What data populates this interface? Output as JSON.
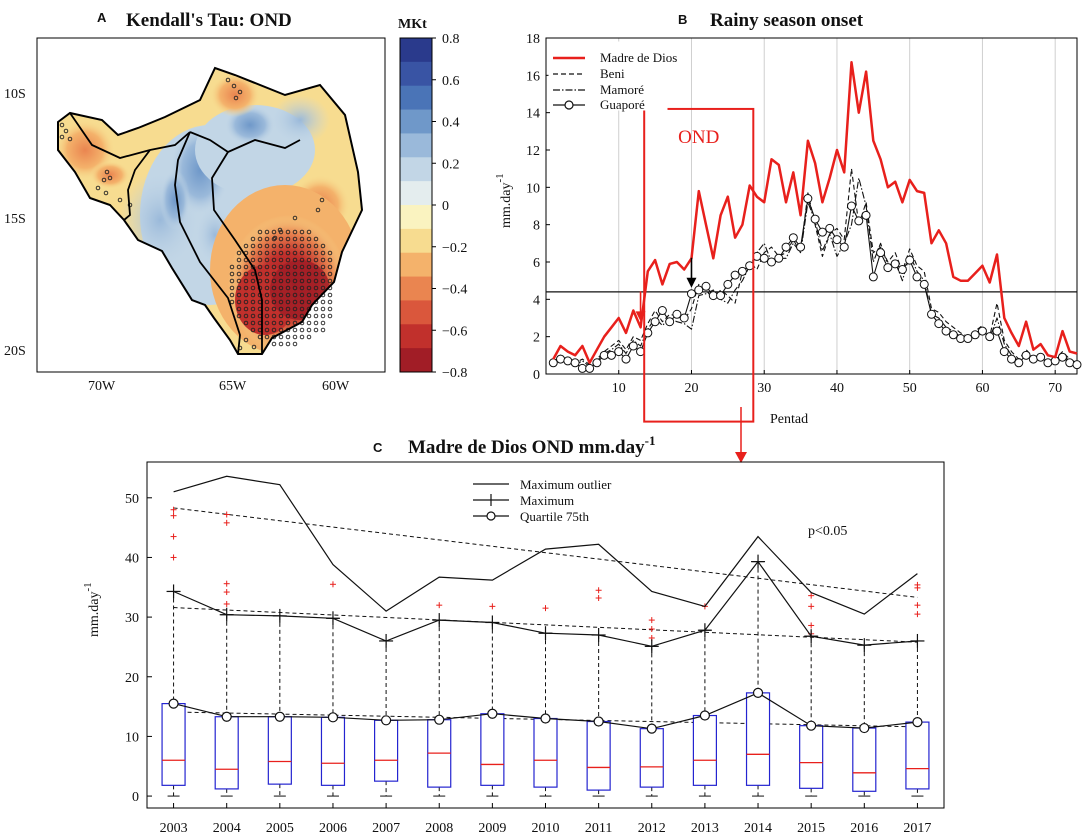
{
  "chart_data": [
    {
      "panel": "A",
      "type": "heatmap",
      "title": "Kendall's Tau: OND",
      "colorbar": {
        "label": "MKt",
        "range": [
          -0.8,
          0.8
        ],
        "ticks": [
          "0.8",
          "0.6",
          "0.4",
          "0.2",
          "0",
          "−0.2",
          "−0.4",
          "−0.6",
          "−0.8"
        ],
        "colors": [
          "#2a3a8c",
          "#3954a4",
          "#4a74b7",
          "#6f98c9",
          "#9ab9da",
          "#c2d6e6",
          "#e4edee",
          "#faf3c0",
          "#f7dc90",
          "#f4b26b",
          "#ea8550",
          "#da573c",
          "#c1302c",
          "#a11d26"
        ]
      },
      "x_ticks": [
        "70W",
        "65W",
        "60W"
      ],
      "y_ticks": [
        "10S",
        "15S",
        "20S"
      ]
    },
    {
      "panel": "B",
      "type": "line",
      "title": "Rainy season onset",
      "xlabel": "Pentad",
      "ylabel_main": "mm.day",
      "ylabel_sup": "-1",
      "xlim": [
        0,
        73
      ],
      "ylim": [
        0,
        18
      ],
      "x_ticks": [
        10,
        20,
        30,
        40,
        50,
        60,
        70
      ],
      "y_ticks": [
        0,
        2,
        4,
        6,
        8,
        10,
        12,
        14,
        16,
        18
      ],
      "threshold": 4.4,
      "ond_box": {
        "label": "OND",
        "x_range": [
          13.5,
          28.5
        ],
        "y_range": [
          -1.8,
          14.2
        ]
      },
      "arrows": [
        {
          "pentad": 13,
          "color": "#e8201c"
        },
        {
          "pentad": 20,
          "color": "#000000"
        }
      ],
      "legend": [
        "Madre de Dios",
        "Beni",
        "Mamoré",
        "Guaporé"
      ],
      "series": [
        {
          "name": "Madre de Dios",
          "color": "#e8201c",
          "values": [
            0.8,
            1.5,
            1.2,
            1.0,
            1.5,
            0.6,
            1.3,
            2.0,
            2.5,
            3.0,
            2.2,
            3.4,
            2.5,
            5.5,
            6.1,
            4.8,
            5.9,
            6.0,
            5.6,
            6.2,
            9.8,
            8.0,
            6.2,
            8.5,
            9.5,
            7.3,
            8.0,
            10.1,
            9.5,
            9.2,
            11.5,
            11.2,
            9.2,
            10.8,
            8.5,
            12.5,
            11.3,
            9.2,
            10.5,
            12.0,
            10.8,
            16.7,
            14.0,
            16.2,
            12.5,
            11.5,
            10.0,
            10.3,
            9.2,
            10.4,
            9.8,
            9.7,
            7.0,
            7.7,
            7.0,
            5.2,
            5.0,
            5.0,
            5.4,
            5.8,
            4.9,
            6.4,
            3.0,
            2.2,
            1.5,
            2.8,
            1.3,
            1.6,
            1.0,
            0.9,
            2.3,
            1.2,
            1.1
          ]
        },
        {
          "name": "Beni",
          "color": "#111111",
          "values": [
            0.6,
            1.0,
            0.8,
            0.6,
            0.8,
            0.5,
            0.8,
            1.2,
            1.5,
            1.8,
            1.3,
            2.0,
            1.8,
            2.7,
            3.4,
            2.8,
            3.2,
            3.1,
            2.9,
            3.5,
            4.8,
            4.5,
            4.0,
            4.5,
            4.2,
            3.8,
            5.5,
            6.0,
            5.6,
            6.5,
            6.8,
            6.3,
            6.5,
            7.2,
            6.5,
            9.7,
            8.0,
            6.3,
            7.5,
            7.8,
            7.2,
            11.0,
            8.0,
            9.2,
            6.5,
            6.8,
            6.0,
            6.5,
            5.5,
            6.7,
            5.8,
            5.5,
            3.5,
            3.3,
            2.8,
            2.5,
            2.2,
            2.0,
            2.3,
            2.6,
            2.0,
            3.8,
            1.8,
            1.2,
            0.8,
            1.3,
            0.9,
            1.0,
            0.7,
            0.8,
            1.2,
            0.8,
            0.6
          ]
        },
        {
          "name": "Mamoré",
          "color": "#111111",
          "values": [
            0.6,
            0.9,
            0.7,
            0.5,
            0.7,
            0.4,
            0.7,
            1.1,
            1.3,
            1.6,
            1.1,
            1.8,
            1.5,
            2.4,
            3.0,
            2.6,
            3.0,
            2.8,
            2.7,
            2.4,
            4.2,
            4.3,
            4.5,
            4.0,
            3.8,
            4.5,
            5.0,
            5.8,
            6.5,
            7.0,
            6.0,
            6.2,
            6.2,
            7.0,
            6.5,
            9.2,
            8.2,
            6.6,
            7.5,
            6.3,
            7.0,
            8.0,
            10.5,
            9.0,
            6.0,
            7.0,
            5.8,
            6.0,
            5.0,
            6.4,
            5.5,
            5.0,
            3.2,
            3.0,
            2.5,
            2.3,
            2.0,
            2.0,
            2.2,
            2.4,
            1.9,
            3.0,
            1.6,
            1.0,
            0.7,
            1.2,
            0.8,
            0.9,
            0.6,
            0.8,
            1.0,
            0.7,
            0.5
          ]
        },
        {
          "name": "Guaporé",
          "color": "#111111",
          "values": [
            0.6,
            0.8,
            0.7,
            0.6,
            0.3,
            0.3,
            0.6,
            1.0,
            1.0,
            1.2,
            0.8,
            1.5,
            1.2,
            2.2,
            2.8,
            3.4,
            2.8,
            3.2,
            3.0,
            4.3,
            4.5,
            4.7,
            4.2,
            4.2,
            4.8,
            5.3,
            5.5,
            5.8,
            6.3,
            6.2,
            6.0,
            6.2,
            6.8,
            7.3,
            6.8,
            9.4,
            8.3,
            7.6,
            7.8,
            7.2,
            6.8,
            9.0,
            8.2,
            8.5,
            5.2,
            6.5,
            5.7,
            5.9,
            5.6,
            6.1,
            5.2,
            4.8,
            3.2,
            2.7,
            2.3,
            2.1,
            1.9,
            1.9,
            2.1,
            2.3,
            2.0,
            2.3,
            1.2,
            0.8,
            0.6,
            1.0,
            0.8,
            0.9,
            0.6,
            0.7,
            0.9,
            0.6,
            0.5
          ]
        }
      ]
    },
    {
      "panel": "C",
      "type": "box",
      "title_main": "Madre de Dios OND mm.day",
      "title_sup": "-1",
      "ylabel_main": "mm.day",
      "ylabel_sup": "-1",
      "ylim": [
        -2,
        56
      ],
      "y_ticks": [
        0,
        10,
        20,
        30,
        40,
        50
      ],
      "annotation": "p<0.05",
      "legend": [
        "Maximum outlier",
        "Maximum",
        "Quartile 75th"
      ],
      "categories": [
        "2003",
        "2004",
        "2005",
        "2006",
        "2007",
        "2008",
        "2009",
        "2010",
        "2011",
        "2012",
        "2013",
        "2014",
        "2015",
        "2016",
        "2017"
      ],
      "max_outlier": [
        51.0,
        53.6,
        52.2,
        38.8,
        31.0,
        36.7,
        36.2,
        41.4,
        42.2,
        34.3,
        31.8,
        43.5,
        34.1,
        30.5,
        37.3
      ],
      "maximum": [
        34.3,
        30.4,
        30.2,
        29.8,
        26.0,
        29.5,
        29.1,
        27.3,
        27.0,
        25.1,
        27.8,
        39.3,
        26.8,
        25.3,
        26.0
      ],
      "q3": [
        15.5,
        13.3,
        13.3,
        13.2,
        12.7,
        12.8,
        13.8,
        13.0,
        12.5,
        11.3,
        13.5,
        17.3,
        11.8,
        11.4,
        12.4
      ],
      "median": [
        6.0,
        4.5,
        5.8,
        5.5,
        6.0,
        7.2,
        5.3,
        6.0,
        4.8,
        4.9,
        6.0,
        7.0,
        5.6,
        3.9,
        4.6
      ],
      "q1": [
        1.8,
        1.2,
        2.0,
        1.8,
        2.5,
        1.5,
        1.8,
        1.5,
        1.0,
        1.5,
        1.8,
        1.8,
        1.3,
        0.8,
        1.2
      ],
      "whisker_low": [
        0,
        0,
        0,
        0,
        0,
        0,
        0,
        0,
        0,
        0,
        0,
        0,
        0,
        0,
        0
      ],
      "outliers": [
        [
          48,
          47,
          43.5,
          40
        ],
        [
          47.2,
          45.8,
          35.6,
          34.2,
          32.2
        ],
        [],
        [
          35.5
        ],
        [],
        [
          32
        ],
        [
          31.8
        ],
        [
          31.5
        ],
        [
          34.5,
          33.2
        ],
        [
          29.5,
          28,
          26.5
        ],
        [
          31.8
        ],
        [],
        [
          33.6,
          31.8,
          28.6,
          27.2
        ],
        [],
        [
          35.4,
          34.9,
          32,
          30.5
        ]
      ],
      "trend_lines": {
        "max_outlier": [
          48.3,
          33.3
        ],
        "maximum": [
          31.6,
          25.8
        ],
        "q3": [
          14.1,
          11.6
        ]
      }
    }
  ],
  "connector_arrow": "C"
}
